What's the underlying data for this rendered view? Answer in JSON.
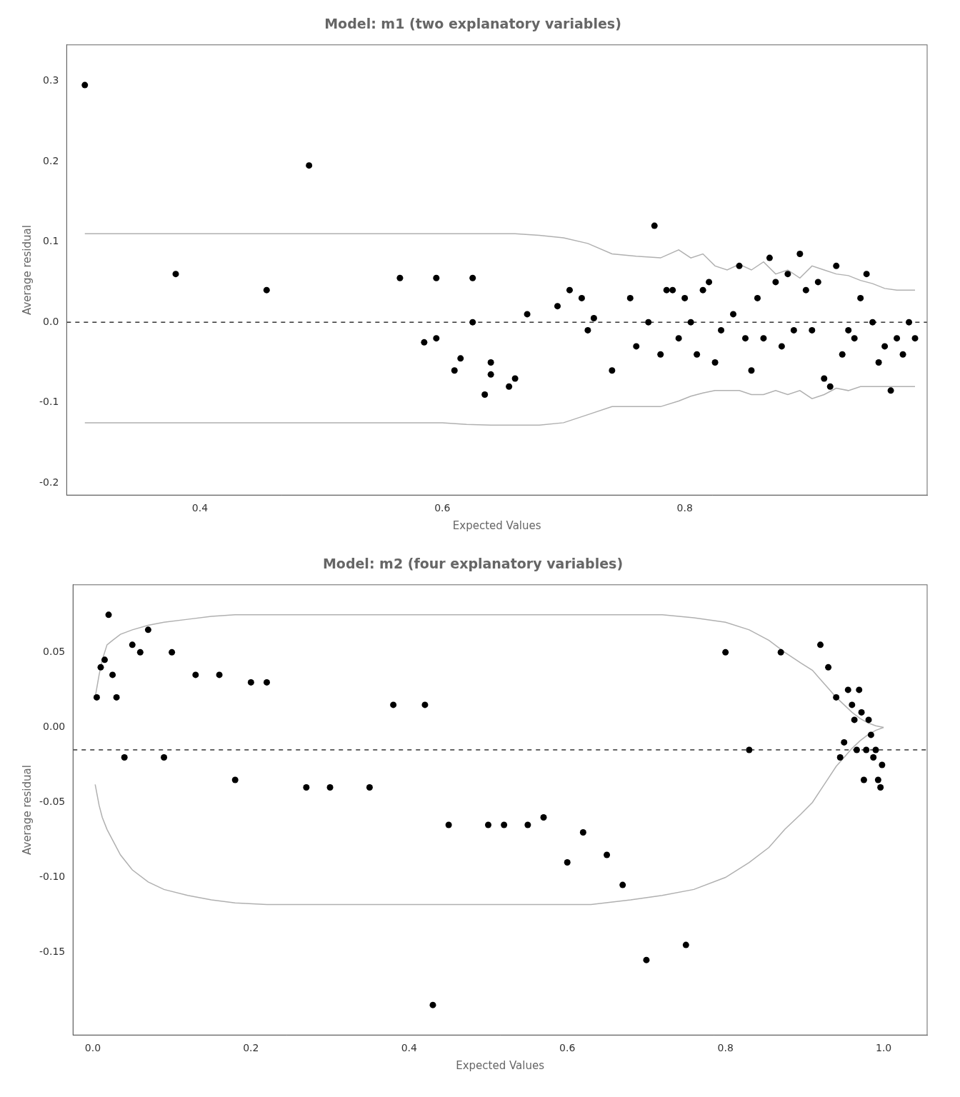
{
  "chart_data": [
    {
      "type": "scatter",
      "title": "Model: m1 (two explanatory variables)",
      "xlabel": "Expected Values",
      "ylabel": "Average residual",
      "background_color": "#ffffff",
      "grid": false,
      "series": [
        {
          "type": "line",
          "color": "#b0b0b0",
          "line_style": "solid",
          "x": [
            0.305,
            0.32,
            0.35,
            0.4,
            0.45,
            0.5,
            0.52,
            0.54,
            0.56,
            0.58,
            0.6,
            0.62,
            0.64,
            0.66,
            0.68,
            0.7,
            0.72,
            0.74,
            0.76,
            0.78,
            0.795,
            0.805,
            0.815,
            0.825,
            0.835,
            0.845,
            0.855,
            0.865,
            0.875,
            0.885,
            0.895,
            0.905,
            0.915,
            0.925,
            0.935,
            0.945,
            0.955,
            0.965,
            0.975,
            0.985,
            0.99
          ],
          "values": [
            0.11,
            0.11,
            0.11,
            0.11,
            0.11,
            0.11,
            0.11,
            0.11,
            0.11,
            0.11,
            0.11,
            0.11,
            0.11,
            0.11,
            0.108,
            0.105,
            0.098,
            0.085,
            0.082,
            0.08,
            0.09,
            0.08,
            0.085,
            0.07,
            0.065,
            0.072,
            0.065,
            0.075,
            0.06,
            0.065,
            0.055,
            0.07,
            0.065,
            0.06,
            0.058,
            0.052,
            0.048,
            0.042,
            0.04,
            0.04,
            0.04
          ]
        },
        {
          "type": "line",
          "color": "#b0b0b0",
          "line_style": "solid",
          "x": [
            0.305,
            0.32,
            0.35,
            0.4,
            0.45,
            0.5,
            0.52,
            0.54,
            0.56,
            0.58,
            0.6,
            0.62,
            0.64,
            0.66,
            0.68,
            0.7,
            0.72,
            0.74,
            0.76,
            0.78,
            0.795,
            0.805,
            0.815,
            0.825,
            0.835,
            0.845,
            0.855,
            0.865,
            0.875,
            0.885,
            0.895,
            0.905,
            0.915,
            0.925,
            0.935,
            0.945,
            0.955,
            0.965,
            0.975,
            0.985,
            0.99
          ],
          "values": [
            -0.125,
            -0.125,
            -0.125,
            -0.125,
            -0.125,
            -0.125,
            -0.125,
            -0.125,
            -0.125,
            -0.125,
            -0.125,
            -0.127,
            -0.128,
            -0.128,
            -0.128,
            -0.125,
            -0.115,
            -0.105,
            -0.105,
            -0.105,
            -0.098,
            -0.092,
            -0.088,
            -0.085,
            -0.085,
            -0.085,
            -0.09,
            -0.09,
            -0.085,
            -0.09,
            -0.085,
            -0.095,
            -0.09,
            -0.082,
            -0.085,
            -0.08,
            -0.08,
            -0.08,
            -0.08,
            -0.08,
            -0.08
          ]
        },
        {
          "type": "scatter",
          "color": "#000000",
          "marker": "circle",
          "x": [
            0.305,
            0.38,
            0.455,
            0.49,
            0.565,
            0.585,
            0.595,
            0.595,
            0.61,
            0.615,
            0.625,
            0.625,
            0.635,
            0.64,
            0.64,
            0.655,
            0.66,
            0.67,
            0.695,
            0.705,
            0.715,
            0.72,
            0.725,
            0.74,
            0.755,
            0.76,
            0.77,
            0.775,
            0.78,
            0.785,
            0.79,
            0.795,
            0.8,
            0.805,
            0.81,
            0.815,
            0.82,
            0.825,
            0.83,
            0.84,
            0.845,
            0.85,
            0.855,
            0.86,
            0.865,
            0.87,
            0.875,
            0.88,
            0.885,
            0.89,
            0.895,
            0.9,
            0.905,
            0.91,
            0.915,
            0.92,
            0.925,
            0.93,
            0.935,
            0.94,
            0.945,
            0.95,
            0.955,
            0.96,
            0.965,
            0.97,
            0.975,
            0.98,
            0.985,
            0.99
          ],
          "values": [
            0.295,
            0.06,
            0.04,
            0.195,
            0.055,
            -0.025,
            -0.02,
            0.055,
            -0.06,
            -0.045,
            0.0,
            0.055,
            -0.09,
            -0.065,
            -0.05,
            -0.08,
            -0.07,
            0.01,
            0.02,
            0.04,
            0.03,
            -0.01,
            0.005,
            -0.06,
            0.03,
            -0.03,
            0.0,
            0.12,
            -0.04,
            0.04,
            0.04,
            -0.02,
            0.03,
            0.0,
            -0.04,
            0.04,
            0.05,
            -0.05,
            -0.01,
            0.01,
            0.07,
            -0.02,
            -0.06,
            0.03,
            -0.02,
            0.08,
            0.05,
            -0.03,
            0.06,
            -0.01,
            0.085,
            0.04,
            -0.01,
            0.05,
            -0.07,
            -0.08,
            0.07,
            -0.04,
            -0.01,
            -0.02,
            0.03,
            0.06,
            0.0,
            -0.05,
            -0.03,
            -0.085,
            -0.02,
            -0.04,
            0.0,
            -0.02
          ]
        }
      ],
      "hlines": [
        {
          "y": 0.0,
          "color": "#000000",
          "line_style": "dashed"
        }
      ],
      "xlim": [
        0.29,
        1.0
      ],
      "ylim": [
        -0.215,
        0.345
      ],
      "xticks": [
        0.4,
        0.6,
        0.8
      ],
      "yticks": [
        -0.2,
        -0.1,
        {
          "value": 0.0,
          "label": "0.0"
        },
        0.1,
        0.2,
        0.3
      ]
    },
    {
      "type": "scatter",
      "title": "Model: m2 (four explanatory variables)",
      "xlabel": "Expected Values",
      "ylabel": "Average residual",
      "background_color": "#ffffff",
      "grid": false,
      "series": [
        {
          "type": "line",
          "color": "#b0b0b0",
          "line_style": "solid",
          "x": [
            0.003,
            0.008,
            0.012,
            0.018,
            0.025,
            0.035,
            0.05,
            0.07,
            0.09,
            0.12,
            0.15,
            0.18,
            0.22,
            0.27,
            0.32,
            0.38,
            0.43,
            0.48,
            0.53,
            0.58,
            0.63,
            0.68,
            0.72,
            0.76,
            0.8,
            0.83,
            0.855,
            0.875,
            0.895,
            0.91,
            0.92,
            0.93,
            0.94,
            0.95,
            0.96,
            0.97,
            0.98,
            0.99,
            1.0
          ],
          "values": [
            0.02,
            0.035,
            0.045,
            0.055,
            0.058,
            0.062,
            0.065,
            0.068,
            0.07,
            0.072,
            0.074,
            0.075,
            0.075,
            0.075,
            0.075,
            0.075,
            0.075,
            0.075,
            0.075,
            0.075,
            0.075,
            0.075,
            0.075,
            0.073,
            0.07,
            0.065,
            0.058,
            0.05,
            0.043,
            0.038,
            0.032,
            0.026,
            0.02,
            0.015,
            0.01,
            0.006,
            0.003,
            0.001,
            0.0
          ]
        },
        {
          "type": "line",
          "color": "#b0b0b0",
          "line_style": "solid",
          "x": [
            0.003,
            0.008,
            0.012,
            0.018,
            0.025,
            0.035,
            0.05,
            0.07,
            0.09,
            0.12,
            0.15,
            0.18,
            0.22,
            0.27,
            0.32,
            0.38,
            0.43,
            0.48,
            0.53,
            0.58,
            0.63,
            0.68,
            0.72,
            0.76,
            0.8,
            0.83,
            0.855,
            0.875,
            0.895,
            0.91,
            0.92,
            0.93,
            0.94,
            0.95,
            0.96,
            0.97,
            0.98,
            0.99,
            1.0
          ],
          "values": [
            -0.038,
            -0.052,
            -0.06,
            -0.068,
            -0.075,
            -0.085,
            -0.095,
            -0.103,
            -0.108,
            -0.112,
            -0.115,
            -0.117,
            -0.118,
            -0.118,
            -0.118,
            -0.118,
            -0.118,
            -0.118,
            -0.118,
            -0.118,
            -0.118,
            -0.115,
            -0.112,
            -0.108,
            -0.1,
            -0.09,
            -0.08,
            -0.068,
            -0.058,
            -0.05,
            -0.042,
            -0.034,
            -0.026,
            -0.02,
            -0.014,
            -0.009,
            -0.005,
            -0.002,
            0.0
          ]
        },
        {
          "type": "scatter",
          "color": "#000000",
          "marker": "circle",
          "x": [
            0.005,
            0.01,
            0.015,
            0.02,
            0.025,
            0.03,
            0.04,
            0.05,
            0.06,
            0.07,
            0.09,
            0.1,
            0.13,
            0.16,
            0.18,
            0.2,
            0.22,
            0.27,
            0.3,
            0.35,
            0.38,
            0.42,
            0.43,
            0.45,
            0.5,
            0.52,
            0.55,
            0.57,
            0.6,
            0.62,
            0.65,
            0.67,
            0.7,
            0.75,
            0.8,
            0.83,
            0.87,
            0.92,
            0.93,
            0.94,
            0.945,
            0.95,
            0.955,
            0.96,
            0.963,
            0.966,
            0.969,
            0.972,
            0.975,
            0.978,
            0.981,
            0.984,
            0.987,
            0.99,
            0.993,
            0.996,
            0.998
          ],
          "values": [
            0.02,
            0.04,
            0.045,
            0.075,
            0.035,
            0.02,
            -0.02,
            0.055,
            0.05,
            0.065,
            -0.02,
            0.05,
            0.035,
            0.035,
            -0.035,
            0.03,
            0.03,
            -0.04,
            -0.04,
            -0.04,
            0.015,
            0.015,
            -0.185,
            -0.065,
            -0.065,
            -0.065,
            -0.065,
            -0.06,
            -0.09,
            -0.07,
            -0.085,
            -0.105,
            -0.155,
            -0.145,
            0.05,
            -0.015,
            0.05,
            0.055,
            0.04,
            0.02,
            -0.02,
            -0.01,
            0.025,
            0.015,
            0.005,
            -0.015,
            0.025,
            0.01,
            -0.035,
            -0.015,
            0.005,
            -0.005,
            -0.02,
            -0.015,
            -0.035,
            -0.04,
            -0.025
          ]
        }
      ],
      "hlines": [
        {
          "y": -0.015,
          "color": "#000000",
          "line_style": "dashed"
        }
      ],
      "xlim": [
        -0.025,
        1.055
      ],
      "ylim": [
        -0.205,
        0.095
      ],
      "xticks": [
        {
          "value": 0.0,
          "label": "0.0"
        },
        0.2,
        0.4,
        0.6,
        0.8,
        {
          "value": 1.0,
          "label": "1.0"
        }
      ],
      "yticks": [
        -0.15,
        {
          "value": -0.1,
          "label": "-0.10"
        },
        -0.05,
        {
          "value": 0.0,
          "label": "0.00"
        },
        0.05
      ]
    }
  ]
}
